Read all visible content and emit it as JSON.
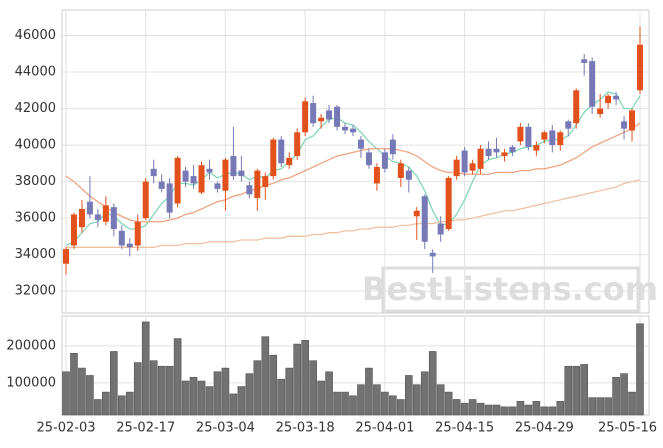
{
  "chart_data": {
    "type": "candlestick",
    "categories": [
      "25-02-03",
      null,
      null,
      null,
      null,
      null,
      null,
      null,
      null,
      null,
      "25-02-17",
      null,
      null,
      null,
      null,
      null,
      null,
      null,
      null,
      null,
      "25-03-04",
      null,
      null,
      null,
      null,
      null,
      null,
      null,
      null,
      null,
      "25-03-18",
      null,
      null,
      null,
      null,
      null,
      null,
      null,
      null,
      null,
      "25-04-01",
      null,
      null,
      null,
      null,
      null,
      null,
      null,
      null,
      null,
      "25-04-15",
      null,
      null,
      null,
      null,
      null,
      null,
      null,
      null,
      null,
      "25-04-29",
      null,
      null,
      null,
      null,
      null,
      null,
      null,
      null,
      null,
      null,
      null,
      "25-05-16"
    ],
    "open": [
      33500,
      34500,
      35500,
      36900,
      36200,
      35800,
      36600,
      35300,
      34600,
      34500,
      36000,
      38700,
      38000,
      37900,
      36800,
      38600,
      38300,
      37400,
      38700,
      37900,
      37500,
      39400,
      38600,
      37800,
      37100,
      37700,
      38300,
      40300,
      38900,
      39400,
      40700,
      42300,
      41300,
      41900,
      42100,
      41000,
      40900,
      40300,
      39600,
      37900,
      39600,
      40300,
      38200,
      38600,
      36100,
      37200,
      34100,
      35700,
      35400,
      38300,
      39700,
      38600,
      38700,
      39800,
      39800,
      39400,
      39900,
      40200,
      41000,
      39700,
      40300,
      40800,
      40000,
      41300,
      41200,
      44700,
      44600,
      41700,
      42300,
      42700,
      41300,
      40800,
      43000
    ],
    "high": [
      34400,
      36300,
      37000,
      38300,
      36500,
      37200,
      36800,
      35600,
      34900,
      36200,
      38200,
      39200,
      38400,
      38200,
      39400,
      38800,
      38900,
      39100,
      39200,
      38000,
      39300,
      41000,
      39400,
      38000,
      38700,
      38500,
      40400,
      40500,
      39600,
      40900,
      42600,
      42700,
      41700,
      42200,
      42200,
      41200,
      41100,
      40500,
      39800,
      39000,
      39800,
      40600,
      39200,
      38800,
      36600,
      37300,
      34300,
      36100,
      38300,
      39400,
      39900,
      39200,
      40000,
      40200,
      40400,
      39800,
      40000,
      41200,
      41200,
      40200,
      40800,
      41100,
      40800,
      41400,
      43100,
      45000,
      44800,
      42800,
      42800,
      42900,
      41600,
      42000,
      46500
    ],
    "low": [
      32900,
      34300,
      35200,
      36000,
      35500,
      35600,
      35000,
      34300,
      33900,
      34200,
      35900,
      37900,
      37400,
      36000,
      36600,
      37700,
      37600,
      37300,
      38100,
      37400,
      36400,
      38100,
      38000,
      37100,
      36400,
      37000,
      38100,
      38800,
      38700,
      39200,
      40500,
      41000,
      40900,
      41200,
      40800,
      40600,
      40500,
      39300,
      38700,
      37500,
      38500,
      39200,
      37700,
      37400,
      34800,
      34300,
      33000,
      34700,
      35300,
      38100,
      38300,
      38400,
      38400,
      39200,
      39300,
      39100,
      39400,
      40000,
      39700,
      39400,
      40100,
      39600,
      39700,
      40500,
      40900,
      43800,
      41700,
      41500,
      42000,
      42200,
      40300,
      40200,
      42800
    ],
    "close": [
      34300,
      36200,
      36500,
      36200,
      35900,
      36700,
      35400,
      34500,
      34400,
      35800,
      38000,
      38300,
      37600,
      36300,
      39300,
      38000,
      37900,
      38900,
      38500,
      37600,
      39200,
      38300,
      38300,
      37300,
      38600,
      38300,
      40300,
      39000,
      39300,
      40700,
      42400,
      41200,
      41500,
      41400,
      41000,
      40800,
      40700,
      39800,
      38900,
      38800,
      38700,
      39500,
      39000,
      38100,
      36400,
      34700,
      33900,
      35100,
      38200,
      39200,
      38500,
      39000,
      39800,
      39400,
      39600,
      39600,
      39600,
      41000,
      39900,
      40000,
      40700,
      40000,
      40700,
      40900,
      43000,
      44500,
      42100,
      42000,
      42700,
      42500,
      40900,
      41900,
      45500
    ],
    "up_color": "#e2511b",
    "down_color": "#7779b6",
    "lines": [
      {
        "color": "#86d6b9",
        "values": [
          34500,
          34700,
          35200,
          35700,
          35800,
          36300,
          36100,
          35700,
          35400,
          35400,
          35600,
          36200,
          36800,
          37200,
          37900,
          37900,
          37800,
          38100,
          38500,
          38200,
          38400,
          38500,
          38400,
          38100,
          38300,
          38200,
          38600,
          38700,
          39100,
          39500,
          40300,
          40500,
          41000,
          41400,
          41500,
          41200,
          41100,
          40700,
          40200,
          39800,
          39400,
          39100,
          39000,
          38800,
          38300,
          37500,
          36400,
          35600,
          35700,
          36200,
          37000,
          38000,
          38900,
          39200,
          39300,
          39500,
          39600,
          39800,
          39900,
          40000,
          40200,
          40300,
          40300,
          40500,
          41100,
          41800,
          42200,
          42500,
          42900,
          42800,
          42000,
          42000,
          42700
        ]
      },
      {
        "color": "#eea582",
        "values": [
          38300,
          38000,
          37600,
          37200,
          36900,
          36600,
          36300,
          36100,
          35900,
          35800,
          35800,
          35800,
          35800,
          35900,
          36000,
          36200,
          36300,
          36500,
          36700,
          36900,
          37000,
          37200,
          37300,
          37500,
          37600,
          37800,
          37900,
          38100,
          38200,
          38400,
          38600,
          38800,
          39000,
          39200,
          39400,
          39500,
          39600,
          39700,
          39800,
          39800,
          39800,
          39800,
          39700,
          39600,
          39400,
          39100,
          38800,
          38600,
          38500,
          38500,
          38400,
          38400,
          38400,
          38400,
          38500,
          38500,
          38500,
          38600,
          38600,
          38700,
          38700,
          38800,
          38900,
          39100,
          39300,
          39600,
          39900,
          40100,
          40300,
          40500,
          40700,
          40900,
          41200
        ]
      },
      {
        "color": "#efc2a4",
        "values": [
          34400,
          34400,
          34400,
          34400,
          34400,
          34400,
          34400,
          34400,
          34400,
          34400,
          34400,
          34400,
          34500,
          34500,
          34500,
          34600,
          34600,
          34600,
          34700,
          34700,
          34700,
          34700,
          34800,
          34800,
          34800,
          34900,
          34900,
          34900,
          35000,
          35000,
          35000,
          35100,
          35100,
          35200,
          35200,
          35300,
          35300,
          35400,
          35400,
          35500,
          35500,
          35500,
          35600,
          35600,
          35700,
          35700,
          35700,
          35800,
          35800,
          35900,
          35900,
          36000,
          36100,
          36200,
          36300,
          36400,
          36400,
          36500,
          36600,
          36700,
          36800,
          36900,
          37000,
          37100,
          37200,
          37300,
          37400,
          37500,
          37600,
          37700,
          37900,
          38000,
          38100
        ]
      }
    ],
    "ylim": [
      30800,
      47400
    ],
    "yticks": [
      32000,
      34000,
      36000,
      38000,
      40000,
      42000,
      44000,
      46000
    ],
    "grid": true,
    "volume": {
      "color": "#727272",
      "values": [
        130000,
        180000,
        140000,
        120000,
        55000,
        75000,
        185000,
        65000,
        75000,
        155000,
        265000,
        160000,
        145000,
        145000,
        220000,
        105000,
        115000,
        105000,
        90000,
        130000,
        140000,
        70000,
        90000,
        125000,
        160000,
        225000,
        175000,
        110000,
        140000,
        205000,
        215000,
        160000,
        105000,
        130000,
        75000,
        75000,
        65000,
        95000,
        140000,
        95000,
        75000,
        65000,
        55000,
        120000,
        95000,
        130000,
        185000,
        95000,
        75000,
        55000,
        45000,
        55000,
        45000,
        40000,
        40000,
        35000,
        35000,
        50000,
        40000,
        50000,
        35000,
        35000,
        50000,
        145000,
        145000,
        150000,
        60000,
        60000,
        60000,
        115000,
        125000,
        75000,
        260000
      ],
      "ylim": [
        13000,
        281000
      ],
      "yticks": [
        100000,
        200000
      ]
    },
    "watermark": "BestListens.com"
  }
}
